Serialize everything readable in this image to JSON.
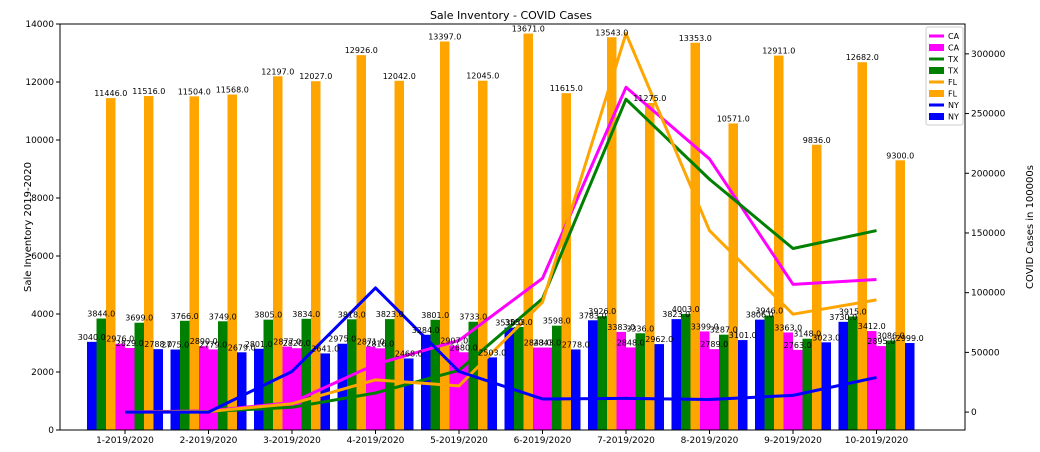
{
  "chart_data": {
    "type": "bar",
    "title": "Sale Inventory - COVID Cases",
    "ylabel": "Sale Inventory 2019-2020",
    "y2label": "COVID Cases in 100000s",
    "ylim": [
      0,
      14000
    ],
    "y2lim": [
      -15000,
      325000
    ],
    "yticks": [
      0,
      2000,
      4000,
      6000,
      8000,
      10000,
      12000,
      14000
    ],
    "y2ticks": [
      0,
      50000,
      100000,
      150000,
      200000,
      250000,
      300000
    ],
    "categories": [
      "1-2019/2020",
      "2-2019/2020",
      "3-2019/2020",
      "4-2019/2020",
      "5-2019/2020",
      "6-2019/2020",
      "7-2019/2020",
      "8-2019/2020",
      "9-2019/2020",
      "10-2019/2020"
    ],
    "legend_position": "top-right",
    "bar_series": [
      {
        "name": "NY",
        "color": "#0000ff",
        "values": [
          3040.0,
          2775.0,
          2801.0,
          2975.0,
          3284.0,
          3530.0,
          3783.0,
          3823.0,
          3806.0,
          3730.0
        ],
        "labels": [
          "3040.0",
          "2775.0",
          "2801.0",
          "2975.0",
          "3284.0",
          "3530.0",
          "3783.0",
          "3823.0",
          "3806.0",
          "3730.0"
        ]
      },
      {
        "name": "TX",
        "color": "#008000",
        "values": [
          3844.0,
          3766.0,
          3805.0,
          3818.0,
          3801.0,
          3553.0,
          3926.0,
          4003.0,
          3946.0,
          3915.0
        ],
        "labels": [
          "3844.0",
          "3766.0",
          "3805.0",
          "3818.0",
          "3801.0",
          "3553.0",
          "3926.0",
          "4003.0",
          "3946.0",
          "3915.0"
        ]
      },
      {
        "name": "FL",
        "color": "#ffa500",
        "values": [
          11446.0,
          11504.0,
          12197.0,
          12926.0,
          13397.0,
          13671.0,
          13543.0,
          13353.0,
          12911.0,
          12682.0
        ],
        "labels": [
          "11446.0",
          "11504.0",
          "12197.0",
          "12926.0",
          "13397.0",
          "13671.0",
          "13543.0",
          "13353.0",
          "12911.0",
          "12682.0"
        ]
      },
      {
        "name": "CA",
        "color": "#ff00ff",
        "values": [
          2976.0,
          2890.0,
          2877.0,
          2871.0,
          2907.0,
          2843.0,
          3383.0,
          3399.0,
          3363.0,
          3412.0
        ],
        "labels": [
          "2976.0",
          "2890.0",
          "2877.0",
          "2871.0",
          "2907.0",
          "2843.0",
          "3383.0",
          "3399.0",
          "3363.0",
          "3412.0"
        ]
      },
      {
        "name": "CA",
        "color": "#ff00ff",
        "values": [
          2829.0,
          2779.0,
          2820.0,
          2816.0,
          2680.0,
          2843.0,
          2848.0,
          2789.0,
          2763.0,
          2895.0
        ],
        "labels": [
          "2829.0",
          "2779.0",
          "2820.0",
          "2816.0",
          "2680.0",
          "2843.0",
          "2848.0",
          "2789.0",
          "2763.0",
          "2895.0"
        ]
      },
      {
        "name": "TX",
        "color": "#008000",
        "values": [
          3699.0,
          3749.0,
          3834.0,
          3823.0,
          3733.0,
          3598.0,
          3336.0,
          3287.0,
          3148.0,
          3086.0
        ],
        "labels": [
          "3699.0",
          "3749.0",
          "3834.0",
          "3823.0",
          "3733.0",
          "3598.0",
          "3336.0",
          "3287.0",
          "3148.0",
          "3086.0"
        ]
      },
      {
        "name": "FL",
        "color": "#ffa500",
        "values": [
          11516.0,
          11568.0,
          12027.0,
          12042.0,
          12045.0,
          11615.0,
          11275.0,
          10571.0,
          9836.0,
          9300.0
        ],
        "labels": [
          "11516.0",
          "11568.0",
          "12027.0",
          "12042.0",
          "12045.0",
          "11615.0",
          "11275.0",
          "10571.0",
          "9836.0",
          "9300.0"
        ]
      },
      {
        "name": "NY",
        "color": "#0000ff",
        "values": [
          2788.0,
          2679.0,
          2641.0,
          2468.0,
          2503.0,
          2778.0,
          2962.0,
          3101.0,
          3023.0,
          2999.0
        ],
        "labels": [
          "2788.0",
          "2679.0",
          "2641.0",
          "2468.0",
          "2503.0",
          "2778.0",
          "2962.0",
          "3101.0",
          "3023.0",
          "2999.0"
        ]
      }
    ],
    "line_series": [
      {
        "name": "CA",
        "color": "#ff00ff",
        "values": [
          0,
          1000,
          8000,
          40000,
          60000,
          112000,
          272000,
          212000,
          107000,
          111000
        ]
      },
      {
        "name": "TX",
        "color": "#008000",
        "values": [
          0,
          500,
          4000,
          16000,
          35000,
          95000,
          262000,
          195000,
          137000,
          152000
        ]
      },
      {
        "name": "FL",
        "color": "#ffa500",
        "values": [
          0,
          500,
          7000,
          27000,
          22000,
          92000,
          317000,
          152000,
          82000,
          94000
        ]
      },
      {
        "name": "NY",
        "color": "#0000ff",
        "values": [
          0,
          0,
          34000,
          104000,
          34000,
          11000,
          11500,
          10500,
          14000,
          29000
        ]
      }
    ],
    "legend": [
      {
        "name": "CA",
        "color": "#ff00ff",
        "kind": "line"
      },
      {
        "name": "CA",
        "color": "#ff00ff",
        "kind": "bar"
      },
      {
        "name": "TX",
        "color": "#008000",
        "kind": "line"
      },
      {
        "name": "TX",
        "color": "#008000",
        "kind": "bar"
      },
      {
        "name": "FL",
        "color": "#ffa500",
        "kind": "line"
      },
      {
        "name": "FL",
        "color": "#ffa500",
        "kind": "bar"
      },
      {
        "name": "NY",
        "color": "#0000ff",
        "kind": "line"
      },
      {
        "name": "NY",
        "color": "#0000ff",
        "kind": "bar"
      }
    ]
  }
}
